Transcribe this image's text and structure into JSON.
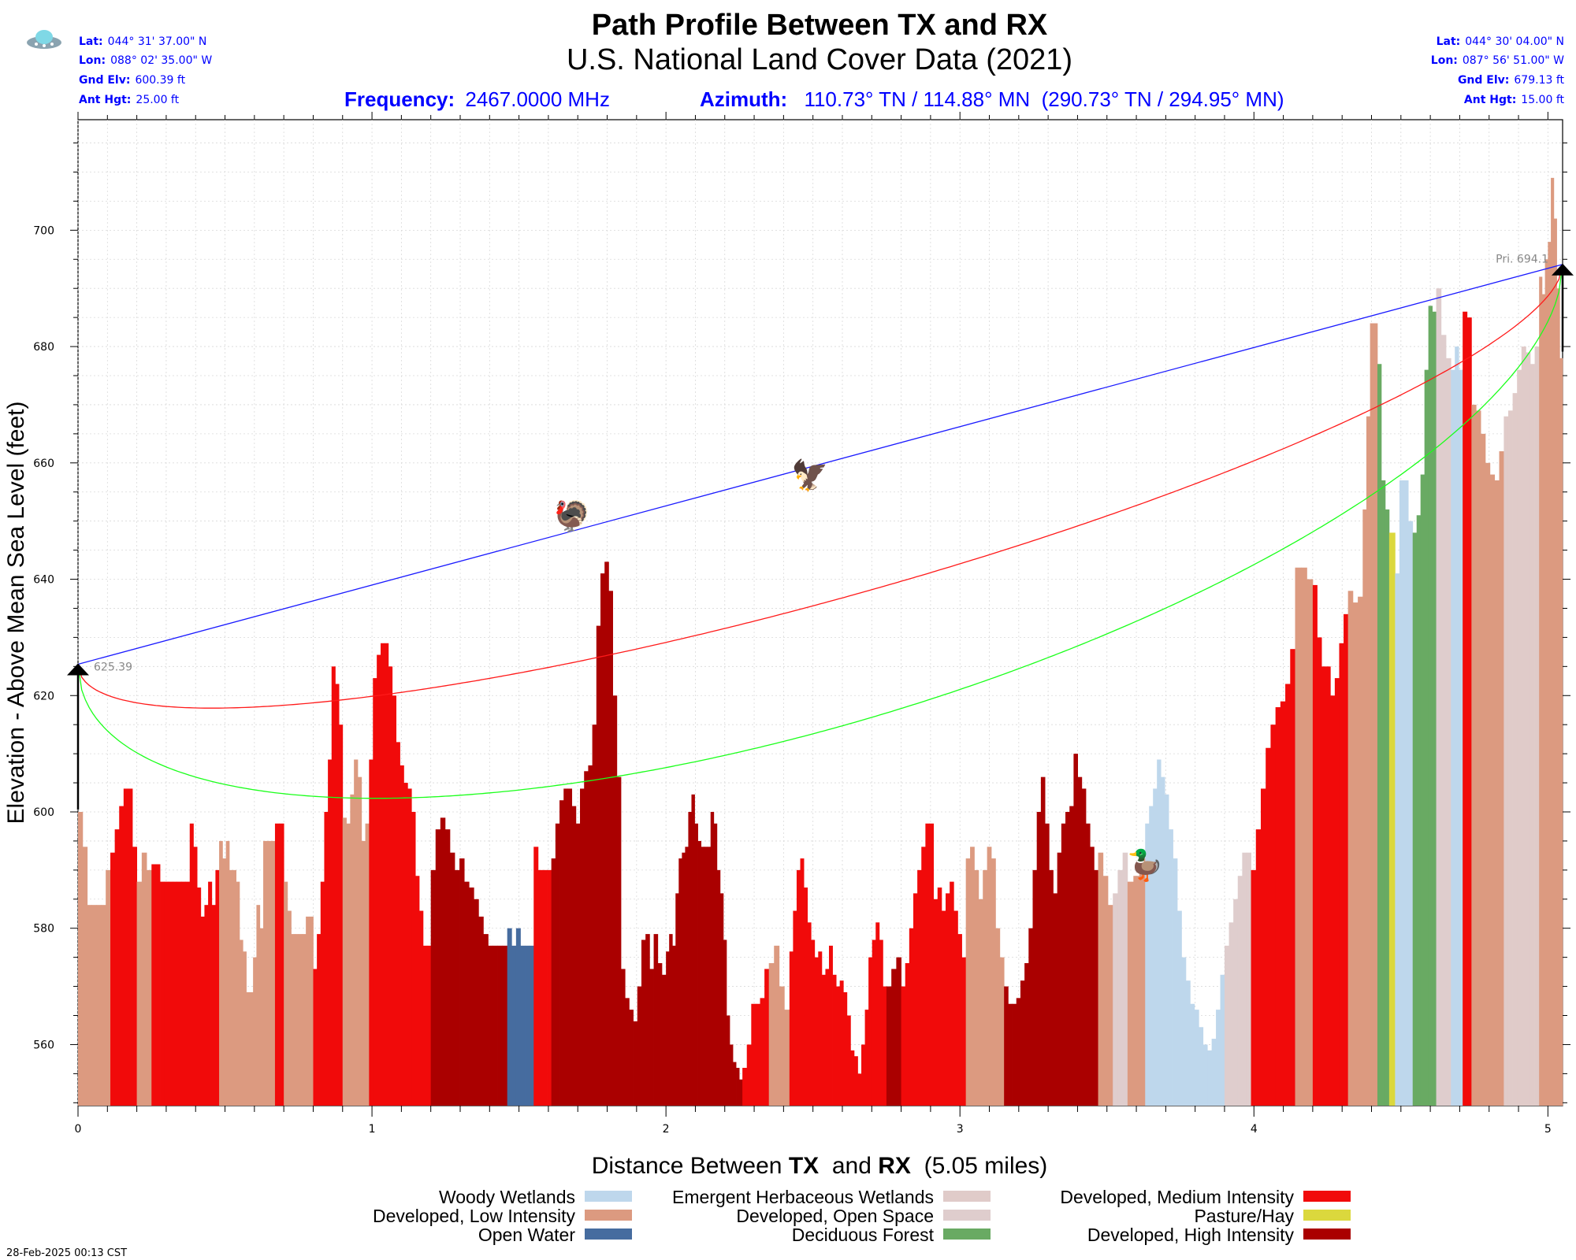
{
  "header": {
    "title": "Path Profile Between TX and RX",
    "subtitle": "U.S. National Land Cover Data (2021)",
    "frequency_label": "Frequency:",
    "frequency_value": "2467.0000 MHz",
    "azimuth_label": "Azimuth:",
    "azimuth_value": "110.73° TN / 114.88° MN  (290.73° TN / 294.95° MN)"
  },
  "tx": {
    "rows": [
      {
        "label": "Lat:",
        "value": "044° 31' 37.00\" N"
      },
      {
        "label": "Lon:",
        "value": "088° 02' 35.00\" W"
      },
      {
        "label": "Gnd Elv:",
        "value": "600.39 ft"
      },
      {
        "label": "Ant Hgt:",
        "value": "25.00 ft"
      }
    ],
    "icon": "ufo-icon"
  },
  "rx": {
    "rows": [
      {
        "label": "Lat:",
        "value": "044° 30' 04.00\" N"
      },
      {
        "label": "Lon:",
        "value": "087° 56' 51.00\" W"
      },
      {
        "label": "Gnd Elv:",
        "value": "679.13 ft"
      },
      {
        "label": "Ant Hgt:",
        "value": "15.00 ft"
      }
    ]
  },
  "footer": {
    "timestamp": "28-Feb-2025 00:13 CST"
  },
  "markers": [
    {
      "icon": "turkey-icon",
      "glyph": "🦃",
      "x": 1.68,
      "y": 651
    },
    {
      "icon": "eagle-icon",
      "glyph": "🦅",
      "x": 2.49,
      "y": 658
    },
    {
      "icon": "duck-icon",
      "glyph": "🦆",
      "x": 3.63,
      "y": 591
    }
  ],
  "chart_data": {
    "type": "bar",
    "title": "Path Profile Between TX and RX",
    "subtitle": "U.S. National Land Cover Data (2021)",
    "xlabel_parts": [
      "Distance Between ",
      "TX",
      "  and ",
      "RX",
      "  (5.05 miles)"
    ],
    "ylabel": "Elevation - Above Mean Sea Level (feet)",
    "xlim": [
      0,
      5.05
    ],
    "ylim": [
      549.5,
      719
    ],
    "xticks": [
      0,
      1,
      2,
      3,
      4,
      5
    ],
    "yticks": [
      560,
      580,
      600,
      620,
      640,
      660,
      680,
      700
    ],
    "grid": true,
    "tx_antenna_elev": 625.39,
    "rx_antenna_elev": 694.13,
    "tx_label": "625.39",
    "rx_label": "Pri. 694.1",
    "colors": {
      "woody_wetlands": "#bed7ec",
      "developed_low": "#dc9a80",
      "open_water": "#466c9f",
      "emergent_wetlands": "#e0cbc9",
      "developed_open": "#dfcdcd",
      "deciduous_forest": "#69aa63",
      "developed_medium": "#f10a0a",
      "pasture_hay": "#dbd83d",
      "developed_high": "#aa0000",
      "los_line": "#1a1aff",
      "fresnel_60": "#ff1a1a",
      "fresnel_full": "#1aff1a"
    },
    "legend": [
      {
        "label": "Woody Wetlands",
        "key": "woody_wetlands"
      },
      {
        "label": "Developed, Low Intensity",
        "key": "developed_low"
      },
      {
        "label": "Open Water",
        "key": "open_water"
      },
      {
        "label": "Emergent Herbaceous Wetlands",
        "key": "emergent_wetlands"
      },
      {
        "label": "Developed, Open Space",
        "key": "developed_open"
      },
      {
        "label": "Deciduous Forest",
        "key": "deciduous_forest"
      },
      {
        "label": "Developed, Medium Intensity",
        "key": "developed_medium"
      },
      {
        "label": "Pasture/Hay",
        "key": "pasture_hay"
      },
      {
        "label": "Developed, High Intensity",
        "key": "developed_high"
      }
    ],
    "legend_position": "bottom",
    "segments": [
      {
        "x0": 0,
        "x1": 0.11,
        "cls": "developed_low",
        "y": [
          600,
          594,
          584,
          584,
          584,
          584,
          590
        ]
      },
      {
        "x0": 0.11,
        "x1": 0.2,
        "cls": "developed_medium",
        "y": [
          593,
          597,
          601,
          604,
          604,
          594
        ]
      },
      {
        "x0": 0.2,
        "x1": 0.25,
        "cls": "developed_low",
        "y": [
          588,
          593,
          590
        ]
      },
      {
        "x0": 0.25,
        "x1": 0.38,
        "cls": "developed_medium",
        "y": [
          591,
          591,
          588,
          588,
          588,
          588,
          588,
          588,
          588
        ]
      },
      {
        "x0": 0.38,
        "x1": 0.48,
        "cls": "developed_medium",
        "y": [
          598,
          594,
          587,
          582,
          584,
          588,
          584,
          590
        ]
      },
      {
        "x0": 0.48,
        "x1": 0.63,
        "cls": "developed_low",
        "y": [
          595,
          592,
          595,
          590,
          590,
          588,
          578,
          576,
          569,
          569,
          575,
          584,
          580
        ]
      },
      {
        "x0": 0.63,
        "x1": 0.67,
        "cls": "developed_low",
        "y": [
          595,
          595
        ]
      },
      {
        "x0": 0.67,
        "x1": 0.7,
        "cls": "developed_medium",
        "y": [
          598,
          598
        ]
      },
      {
        "x0": 0.7,
        "x1": 0.8,
        "cls": "developed_low",
        "y": [
          588,
          583,
          579,
          579,
          579,
          579,
          582,
          582
        ]
      },
      {
        "x0": 0.8,
        "x1": 0.9,
        "cls": "developed_medium",
        "y": [
          573,
          579,
          588,
          600,
          609,
          625,
          622,
          615
        ]
      },
      {
        "x0": 0.9,
        "x1": 0.99,
        "cls": "developed_low",
        "y": [
          599,
          598,
          603,
          609,
          606,
          595,
          598
        ]
      },
      {
        "x0": 0.99,
        "x1": 1.2,
        "cls": "developed_medium",
        "y": [
          609,
          623,
          627,
          629,
          629,
          625,
          620,
          612,
          608,
          605,
          604,
          600,
          589,
          583,
          577,
          577
        ]
      },
      {
        "x0": 1.2,
        "x1": 1.46,
        "cls": "developed_high",
        "y": [
          590,
          597,
          599,
          597,
          593,
          590,
          592,
          588,
          587,
          585,
          582,
          579,
          577,
          577,
          577,
          577
        ]
      },
      {
        "x0": 1.46,
        "x1": 1.55,
        "cls": "open_water",
        "y": [
          580,
          577,
          580,
          577,
          577,
          577
        ]
      },
      {
        "x0": 1.55,
        "x1": 1.61,
        "cls": "developed_medium",
        "y": [
          594,
          590,
          590,
          590
        ]
      },
      {
        "x0": 1.61,
        "x1": 2.0,
        "cls": "developed_high",
        "y": [
          592,
          598,
          602,
          604,
          604,
          601,
          598,
          604,
          607,
          608,
          615,
          632,
          641,
          643,
          638,
          620,
          606,
          573,
          568,
          566,
          564,
          570,
          578,
          579,
          573,
          579,
          574,
          572
        ]
      },
      {
        "x0": 2.0,
        "x1": 2.26,
        "cls": "developed_high",
        "y": [
          576,
          579,
          577,
          586,
          592,
          593,
          594,
          600,
          603,
          598,
          595,
          594,
          594,
          594,
          600,
          598,
          590,
          586,
          578,
          565,
          560,
          557,
          556,
          554
        ]
      },
      {
        "x0": 2.26,
        "x1": 2.35,
        "cls": "developed_medium",
        "y": [
          556,
          560,
          567,
          567,
          568,
          573
        ]
      },
      {
        "x0": 2.35,
        "x1": 2.42,
        "cls": "developed_low",
        "y": [
          574,
          577,
          570,
          566
        ]
      },
      {
        "x0": 2.42,
        "x1": 2.75,
        "cls": "developed_medium",
        "y": [
          576,
          583,
          590,
          592,
          587,
          581,
          578,
          575,
          576,
          572,
          573,
          577,
          572,
          570,
          571,
          569,
          565,
          559,
          558,
          555,
          560,
          566,
          575,
          578,
          581,
          578,
          570
        ]
      },
      {
        "x0": 2.75,
        "x1": 2.8,
        "cls": "developed_high",
        "y": [
          570,
          573,
          575
        ]
      },
      {
        "x0": 2.8,
        "x1": 3.02,
        "cls": "developed_medium",
        "y": [
          570,
          574,
          580,
          586,
          590,
          594,
          598,
          598,
          585,
          587,
          583,
          586,
          588,
          583,
          579,
          575
        ]
      },
      {
        "x0": 3.02,
        "x1": 3.15,
        "cls": "developed_low",
        "y": [
          592,
          594,
          590,
          585,
          590,
          594,
          592,
          580,
          575
        ]
      },
      {
        "x0": 3.15,
        "x1": 3.47,
        "cls": "developed_high",
        "y": [
          570,
          567,
          567,
          568,
          571,
          574,
          580,
          590,
          600,
          606,
          598,
          590,
          586,
          593,
          598,
          600,
          601,
          610,
          606,
          604,
          598,
          594,
          590
        ]
      },
      {
        "x0": 3.47,
        "x1": 3.52,
        "cls": "developed_low",
        "y": [
          593,
          589,
          584
        ]
      },
      {
        "x0": 3.52,
        "x1": 3.57,
        "cls": "developed_open",
        "y": [
          586,
          590,
          593
        ]
      },
      {
        "x0": 3.57,
        "x1": 3.63,
        "cls": "developed_low",
        "y": [
          588,
          589,
          592
        ]
      },
      {
        "x0": 3.63,
        "x1": 3.71,
        "cls": "woody_wetlands",
        "y": [
          598,
          601,
          604,
          609,
          606,
          603
        ]
      },
      {
        "x0": 3.71,
        "x1": 3.9,
        "cls": "woody_wetlands",
        "y": [
          597,
          592,
          583,
          575,
          571,
          567,
          566,
          563,
          560,
          559,
          561,
          566,
          572
        ]
      },
      {
        "x0": 3.9,
        "x1": 3.99,
        "cls": "developed_open",
        "y": [
          577,
          581,
          585,
          589,
          593,
          593
        ]
      },
      {
        "x0": 3.99,
        "x1": 4.14,
        "cls": "developed_medium",
        "y": [
          590,
          597,
          604,
          611,
          615,
          618,
          619,
          622,
          628
        ]
      },
      {
        "x0": 4.14,
        "x1": 4.2,
        "cls": "developed_low",
        "y": [
          642,
          642,
          640
        ]
      },
      {
        "x0": 4.2,
        "x1": 4.32,
        "cls": "developed_medium",
        "y": [
          639,
          630,
          625,
          625,
          620,
          623,
          629,
          634
        ]
      },
      {
        "x0": 4.32,
        "x1": 4.37,
        "cls": "developed_low",
        "y": [
          638,
          636,
          637
        ]
      },
      {
        "x0": 4.37,
        "x1": 4.42,
        "cls": "developed_low",
        "y": [
          652,
          668,
          684,
          684
        ]
      },
      {
        "x0": 4.42,
        "x1": 4.46,
        "cls": "deciduous_forest",
        "y": [
          677,
          657,
          652
        ]
      },
      {
        "x0": 4.46,
        "x1": 4.48,
        "cls": "pasture_hay",
        "y": [
          648
        ]
      },
      {
        "x0": 4.48,
        "x1": 4.54,
        "cls": "woody_wetlands",
        "y": [
          641,
          657,
          657,
          650
        ]
      },
      {
        "x0": 4.54,
        "x1": 4.62,
        "cls": "deciduous_forest",
        "y": [
          648,
          651,
          658,
          676,
          687,
          686
        ]
      },
      {
        "x0": 4.62,
        "x1": 4.67,
        "cls": "developed_open",
        "y": [
          690,
          682,
          678
        ]
      },
      {
        "x0": 4.67,
        "x1": 4.71,
        "cls": "woody_wetlands",
        "y": [
          676,
          680,
          676
        ]
      },
      {
        "x0": 4.71,
        "x1": 4.74,
        "cls": "developed_medium",
        "y": [
          686,
          685
        ]
      },
      {
        "x0": 4.74,
        "x1": 4.85,
        "cls": "developed_low",
        "y": [
          670,
          669,
          665,
          660,
          658,
          657,
          662
        ]
      },
      {
        "x0": 4.85,
        "x1": 4.97,
        "cls": "emergent_wetlands",
        "y": [
          668,
          669,
          672,
          676,
          680,
          679,
          677,
          680
        ]
      },
      {
        "x0": 4.97,
        "x1": 5.05,
        "cls": "developed_low",
        "y": [
          692,
          689,
          695,
          698,
          709,
          702,
          690,
          678
        ]
      }
    ]
  }
}
